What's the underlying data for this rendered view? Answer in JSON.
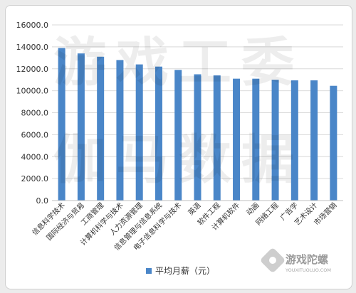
{
  "chart_data": {
    "type": "bar",
    "categories": [
      "信息科学技术",
      "国际经济与贸易",
      "工商管理",
      "计算机科学与技术",
      "人力资源管理",
      "信息管理与信息系统",
      "电子信息科学与技术",
      "英语",
      "软件工程",
      "计算机软件",
      "动画",
      "网络工程",
      "广告学",
      "艺术设计",
      "市场营销"
    ],
    "series": [
      {
        "name": "平均月薪（元）",
        "values": [
          13900,
          13400,
          13100,
          12800,
          12400,
          12200,
          11900,
          11500,
          11400,
          11100,
          11100,
          11000,
          10950,
          10950,
          10450
        ]
      }
    ],
    "y_ticks": [
      "0.0",
      "2000.0",
      "4000.0",
      "6000.0",
      "8000.0",
      "10000.0",
      "12000.0",
      "14000.0",
      "16000.0"
    ],
    "ylim": [
      0,
      16000
    ],
    "grid": true,
    "legend_position": "bottom",
    "bar_color": "#4a86c8"
  },
  "watermark": {
    "lines": [
      "游戏工委",
      "伽马数据"
    ],
    "logo_text": "游戏陀螺",
    "logo_sub": "YOUXITUOLUO.COM"
  }
}
